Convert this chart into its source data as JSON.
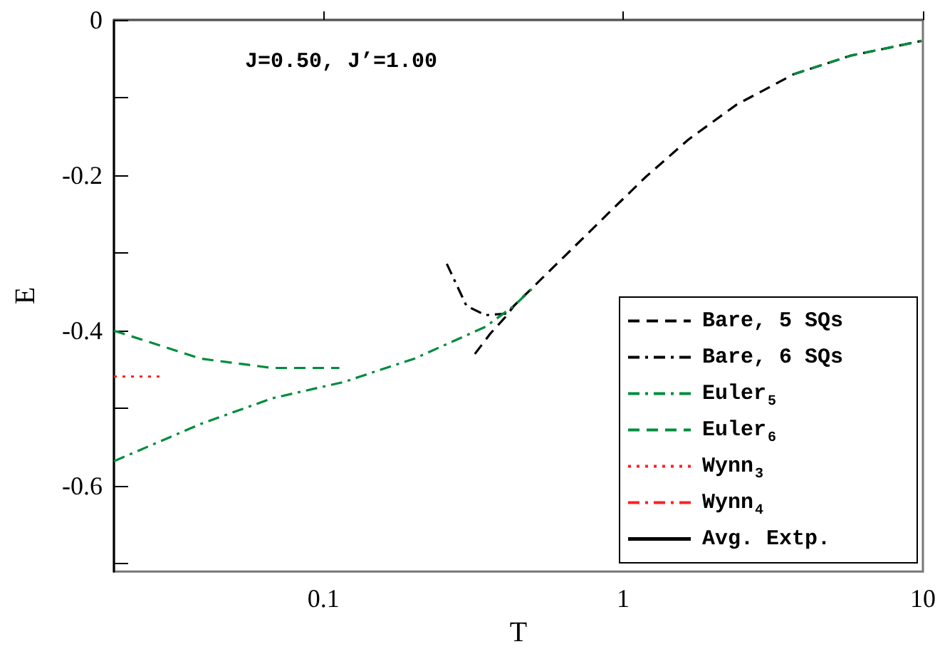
{
  "chart_data": {
    "type": "line",
    "xlabel": "T",
    "ylabel": "E",
    "log": "x",
    "xlim": [
      0.02,
      10
    ],
    "xticks": [
      0.1,
      1,
      10
    ],
    "ylim": [
      -0.71,
      0
    ],
    "yticks": [
      0,
      {
        "value": -0.1,
        "label": null
      },
      -0.2,
      {
        "value": -0.3,
        "label": null
      },
      -0.4,
      {
        "value": -0.5,
        "label": null
      },
      -0.6,
      {
        "value": -0.7,
        "label": null
      }
    ],
    "grid": false,
    "legend": "bottom right",
    "marker": "none",
    "annotations": [
      "J=0.50, J’=1.00"
    ],
    "series": [
      {
        "name": "Bare, 5 SQs",
        "color": "#000000",
        "line_style": "dashed",
        "x": [
          0.32,
          0.36,
          0.41,
          0.432,
          0.646,
          0.897,
          1.19,
          1.65,
          2.39,
          3.7,
          5.73,
          9.9
        ],
        "values": [
          -0.43,
          -0.404,
          -0.38,
          -0.368,
          -0.302,
          -0.248,
          -0.202,
          -0.154,
          -0.109,
          -0.07,
          -0.046,
          -0.027
        ]
      },
      {
        "name": "Bare, 6 SQs",
        "color": "#000000",
        "line_style": "dashdot",
        "x": [
          0.258,
          0.3,
          0.347,
          0.41,
          0.432
        ],
        "values": [
          -0.314,
          -0.368,
          -0.38,
          -0.378,
          -0.368
        ]
      },
      {
        "name": "Euler$_{5}$",
        "color": "#008c3c",
        "line_style": "dashdot",
        "x": [
          0.02,
          0.039,
          0.0675,
          0.117,
          0.201,
          0.347,
          0.432,
          0.5
        ],
        "values": [
          -0.568,
          -0.52,
          -0.487,
          -0.466,
          -0.436,
          -0.395,
          -0.368,
          -0.345
        ]
      },
      {
        "name": "Euler$_{6}$",
        "color": "#008c3c",
        "line_style": "dashed",
        "x": [
          0.02,
          0.039,
          0.0675,
          0.113,
          0.12,
          3.7,
          5.73,
          9.9
        ],
        "values": [
          -0.4,
          -0.436,
          -0.448,
          -0.448,
          null,
          -0.07,
          -0.046,
          -0.027
        ]
      },
      {
        "name": "Wynn$_{3}$",
        "color": "#ff2020",
        "line_style": "dotted",
        "x": [
          0.02,
          0.029
        ],
        "values": [
          -0.459,
          -0.459
        ]
      },
      {
        "name": "Wynn$_{4}$",
        "color": "#ff2020",
        "line_style": "dashdot"
      },
      {
        "name": "Avg. Extp.",
        "color": "#000000",
        "line_style": "solid"
      }
    ]
  }
}
